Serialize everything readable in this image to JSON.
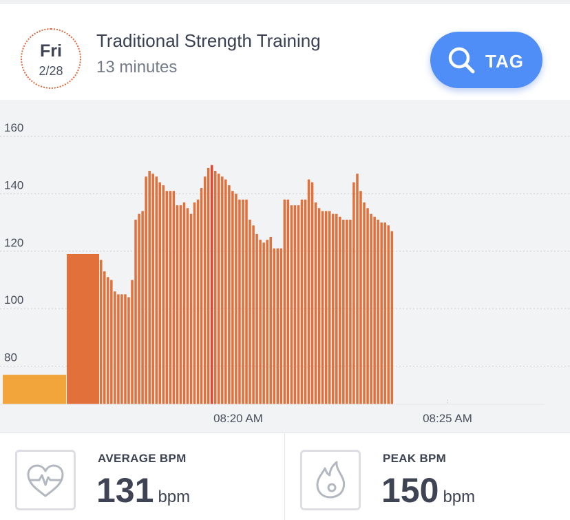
{
  "header": {
    "day_label": "Fri",
    "date_label": "2/28",
    "title": "Traditional Strength Training",
    "duration": "13 minutes",
    "tag_button_label": "TAG",
    "tag_icon": "search-icon"
  },
  "chart_data": {
    "type": "bar",
    "ylabel": "",
    "xlabel": "",
    "y_ticks": [
      160,
      140,
      120,
      100,
      80
    ],
    "x_tick_labels": [
      "08:20 AM",
      "08:25 AM"
    ],
    "ylim": [
      70,
      166
    ],
    "grid": true,
    "colors": {
      "normal": "#e2703a",
      "low": "#f2a53a",
      "peak": "#e0452f"
    },
    "values": [
      77,
      119,
      117,
      113,
      111,
      110,
      106,
      105,
      105,
      105,
      104,
      110,
      131,
      133,
      134,
      146,
      148,
      147,
      146,
      144,
      143,
      141,
      141,
      141,
      136,
      136,
      137,
      135,
      133,
      137,
      138,
      142,
      146,
      149,
      150,
      148,
      147,
      146,
      145,
      143,
      141,
      140,
      138,
      138,
      138,
      131,
      129,
      126,
      124,
      123,
      124,
      125,
      121,
      121,
      121,
      138,
      138,
      136,
      136,
      136,
      138,
      138,
      145,
      144,
      137,
      135,
      134,
      134,
      134,
      133,
      133,
      132,
      131,
      131,
      131,
      144,
      147,
      141,
      137,
      135,
      133,
      132,
      131,
      130,
      130,
      129,
      127
    ]
  },
  "stats": {
    "average": {
      "label": "AVERAGE BPM",
      "value": "131",
      "unit": "bpm",
      "icon": "heart-pulse-icon"
    },
    "peak": {
      "label": "PEAK BPM",
      "value": "150",
      "unit": "bpm",
      "icon": "flame-icon"
    }
  }
}
